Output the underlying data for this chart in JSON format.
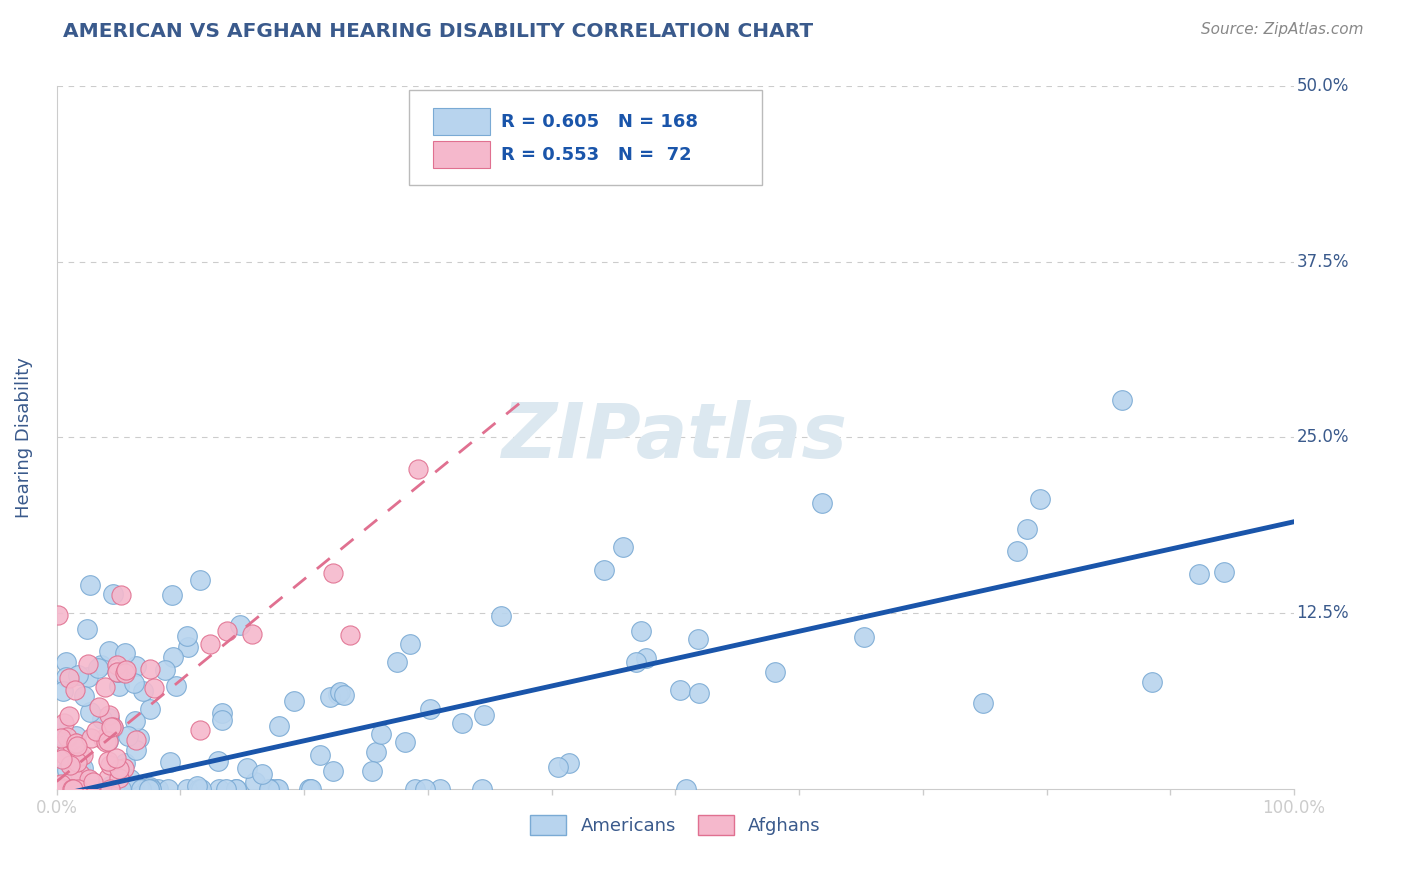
{
  "title": "AMERICAN VS AFGHAN HEARING DISABILITY CORRELATION CHART",
  "source": "Source: ZipAtlas.com",
  "ylabel": "Hearing Disability",
  "xlim": [
    0,
    1.0
  ],
  "ylim": [
    0,
    0.5
  ],
  "yticks": [
    0,
    0.125,
    0.25,
    0.375,
    0.5
  ],
  "ytick_labels": [
    "",
    "12.5%",
    "25.0%",
    "37.5%",
    "50.0%"
  ],
  "title_color": "#3a5a8c",
  "source_color": "#888888",
  "label_color": "#3a5a8c",
  "axis_color": "#cccccc",
  "grid_color": "#cccccc",
  "americans_color": "#b8d4ee",
  "americans_edge_color": "#7aaad4",
  "afghans_color": "#f5b8cc",
  "afghans_edge_color": "#e07090",
  "trend_american_color": "#1a55aa",
  "trend_afghan_color": "#e07090",
  "watermark_color": "#dce8f0",
  "legend_r_american": "R = 0.605",
  "legend_n_american": "N = 168",
  "legend_r_afghan": "R = 0.553",
  "legend_n_afghan": "N =  72",
  "american_trend_intercept": -0.005,
  "american_trend_slope": 0.195,
  "afghan_trend_intercept": 0.005,
  "afghan_trend_slope": 0.72,
  "afghan_trend_xmax": 0.38
}
